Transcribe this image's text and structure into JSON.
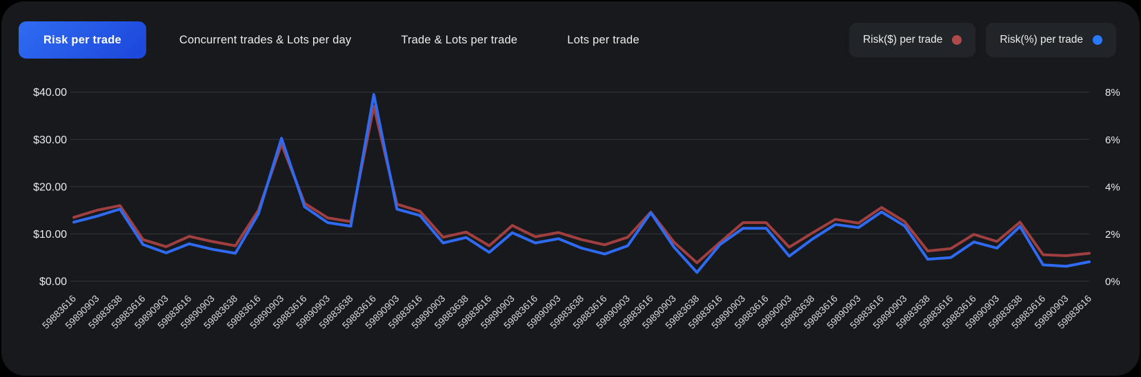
{
  "tabs": {
    "items": [
      {
        "label": "Risk per trade",
        "active": true
      },
      {
        "label": "Concurrent trades & Lots per day",
        "active": false
      },
      {
        "label": "Trade & Lots per trade",
        "active": false
      },
      {
        "label": "Lots per trade",
        "active": false
      }
    ]
  },
  "legend": {
    "items": [
      {
        "label": "Risk($) per trade",
        "dot_color": "#b04a4a"
      },
      {
        "label": "Risk(%) per trade",
        "dot_color": "#2979ff"
      }
    ]
  },
  "colors": {
    "card_bg": "#17191d",
    "outer_bg": "#000000",
    "active_tab_blue": "#2557e8",
    "grid": "#34373c",
    "axis_text": "#e9eaec",
    "x_text": "#d9dbde",
    "red_line": "#a03f3f",
    "blue_line": "#2e6bf2"
  },
  "chart_data": {
    "type": "line",
    "title": "",
    "grid": "horizontal",
    "legend_position": "top-right",
    "categories": [
      "59883616",
      "59890903",
      "59883638",
      "59883616",
      "59890903",
      "59883616",
      "59890903",
      "59883638",
      "59883616",
      "59890903",
      "59883616",
      "59890903",
      "59883638",
      "59883616",
      "59890903",
      "59883616",
      "59890903",
      "59883638",
      "59883616",
      "59890903",
      "59883616",
      "59890903",
      "59883638",
      "59883616",
      "59890903",
      "59883616",
      "59890903",
      "59883638",
      "59883616",
      "59890903",
      "59883616",
      "59890903",
      "59883638",
      "59883616",
      "59890903",
      "59883616",
      "59890903",
      "59883638",
      "59883616",
      "59883616",
      "59890903",
      "59883638",
      "59883616",
      "59890903",
      "59883616"
    ],
    "left_axis": {
      "ticks": [
        "$40.00",
        "$30.00",
        "$20.00",
        "$10.00",
        "$0.00"
      ],
      "min": 0,
      "max": 40,
      "unit": "$"
    },
    "right_axis": {
      "ticks": [
        "8%",
        "6%",
        "4%",
        "2%",
        "0%"
      ],
      "min": 0,
      "max": 8,
      "unit": "%"
    },
    "series": [
      {
        "name": "Risk($) per trade",
        "axis": "left",
        "color": "#a03f3f",
        "values": [
          13.5,
          15.0,
          16.0,
          8.8,
          7.3,
          9.5,
          8.4,
          7.5,
          15.0,
          29.0,
          16.5,
          13.4,
          12.6,
          37.0,
          16.3,
          14.8,
          9.3,
          10.4,
          7.5,
          11.8,
          9.4,
          10.3,
          8.8,
          7.7,
          9.3,
          14.6,
          8.3,
          3.9,
          8.2,
          12.4,
          12.4,
          7.2,
          10.2,
          13.1,
          12.3,
          15.6,
          12.6,
          6.4,
          6.9,
          9.9,
          8.4,
          12.5,
          5.6,
          5.4,
          5.9
        ]
      },
      {
        "name": "Risk(%) per trade",
        "axis": "right",
        "color": "#2e6bf2",
        "values": [
          2.5,
          2.75,
          3.05,
          1.55,
          1.2,
          1.58,
          1.35,
          1.18,
          2.85,
          6.05,
          3.15,
          2.48,
          2.33,
          7.9,
          3.05,
          2.78,
          1.62,
          1.85,
          1.22,
          2.05,
          1.62,
          1.8,
          1.4,
          1.15,
          1.5,
          2.9,
          1.45,
          0.37,
          1.55,
          2.24,
          2.24,
          1.06,
          1.78,
          2.4,
          2.27,
          2.93,
          2.34,
          0.93,
          1.0,
          1.66,
          1.4,
          2.32,
          0.69,
          0.63,
          0.82
        ]
      }
    ]
  }
}
